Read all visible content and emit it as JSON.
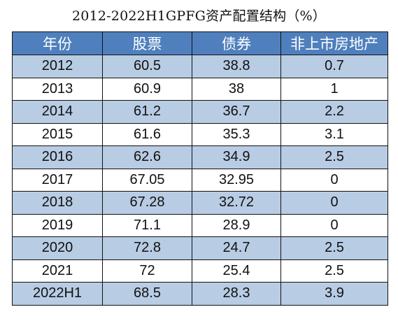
{
  "title": "2012-2022H1GPFG资产配置结构（%）",
  "colors": {
    "header_bg": "#4f80bd",
    "header_text": "#ffffff",
    "row_shaded": "#b8cce4",
    "row_plain": "#ffffff",
    "border": "#111111"
  },
  "chart_data": {
    "type": "table",
    "title": "2012-2022H1GPFG资产配置结构（%）",
    "columns": [
      "年份",
      "股票",
      "债券",
      "非上市房地产"
    ],
    "rows": [
      [
        "2012",
        "60.5",
        "38.8",
        "0.7"
      ],
      [
        "2013",
        "60.9",
        "38",
        "1"
      ],
      [
        "2014",
        "61.2",
        "36.7",
        "2.2"
      ],
      [
        "2015",
        "61.6",
        "35.3",
        "3.1"
      ],
      [
        "2016",
        "62.6",
        "34.9",
        "2.5"
      ],
      [
        "2017",
        "67.05",
        "32.95",
        "0"
      ],
      [
        "2018",
        "67.28",
        "32.72",
        "0"
      ],
      [
        "2019",
        "71.1",
        "28.9",
        "0"
      ],
      [
        "2020",
        "72.8",
        "24.7",
        "2.5"
      ],
      [
        "2021",
        "72",
        "25.4",
        "2.5"
      ],
      [
        "2022H1",
        "68.5",
        "28.3",
        "3.9"
      ]
    ]
  }
}
